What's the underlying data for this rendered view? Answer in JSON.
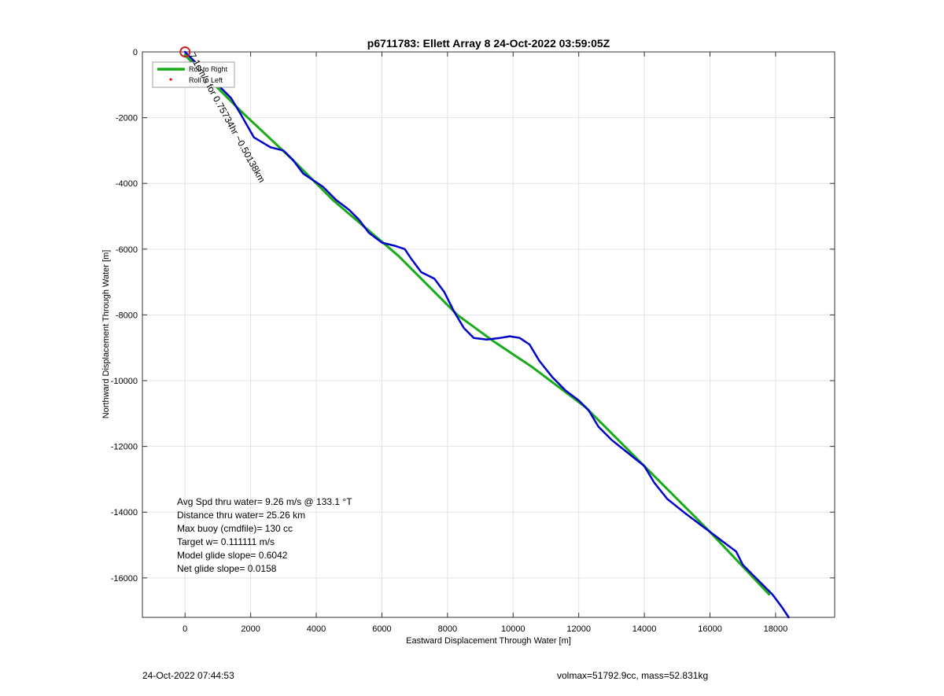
{
  "footer": {
    "timestamp": "24-Oct-2022 07:44:53",
    "mass_info": "volmax=51792.9cc, mass=52.831kg"
  },
  "chart_data": {
    "type": "line",
    "title": "p6711783: Ellett Array 8 24-Oct-2022 03:59:05Z",
    "xlabel": "Eastward Displacement Through Water [m]",
    "ylabel": "Northward Displacement Through Water [m]",
    "xlim": [
      -1300,
      19800
    ],
    "ylim": [
      -17200,
      0
    ],
    "xticks": [
      0,
      2000,
      4000,
      6000,
      8000,
      10000,
      12000,
      14000,
      16000,
      18000
    ],
    "yticks": [
      0,
      -2000,
      -4000,
      -6000,
      -8000,
      -10000,
      -12000,
      -14000,
      -16000
    ],
    "grid": true,
    "legend": {
      "placement": "top-left",
      "entries": [
        "Roll to Right",
        "Roll to Left"
      ]
    },
    "series": [
      {
        "name": "Roll to Right",
        "color": "#1aab1a",
        "x": [
          0,
          1700,
          3300,
          4500,
          6500,
          8300,
          9400,
          10600,
          12200,
          14000,
          16000,
          17800
        ],
        "y": [
          -100,
          -1800,
          -3300,
          -4500,
          -6200,
          -8000,
          -8800,
          -9600,
          -10800,
          -12600,
          -14600,
          -16500
        ]
      },
      {
        "name": "Roll to Left",
        "color": "#ff0000",
        "x": [],
        "y": []
      },
      {
        "name": "",
        "color": "#0000cc",
        "x": [
          0,
          300,
          700,
          1100,
          1400,
          1700,
          2100,
          2600,
          3000,
          3300,
          3600,
          3900,
          4200,
          4600,
          5000,
          5300,
          5600,
          6000,
          6400,
          6700,
          6900,
          7200,
          7600,
          7900,
          8200,
          8500,
          8800,
          9200,
          9600,
          9900,
          10200,
          10500,
          10800,
          11200,
          11600,
          12000,
          12300,
          12600,
          13000,
          13500,
          14000,
          14300,
          14700,
          15200,
          15600,
          16000,
          16400,
          16800,
          17000,
          17300,
          17600,
          17900,
          18200,
          18400
        ],
        "y": [
          0,
          -300,
          -700,
          -1100,
          -1400,
          -1900,
          -2600,
          -2900,
          -3000,
          -3300,
          -3700,
          -3900,
          -4100,
          -4500,
          -4800,
          -5100,
          -5500,
          -5800,
          -5900,
          -6000,
          -6300,
          -6700,
          -6900,
          -7300,
          -7900,
          -8400,
          -8700,
          -8750,
          -8700,
          -8650,
          -8700,
          -8900,
          -9400,
          -9900,
          -10300,
          -10600,
          -10900,
          -11400,
          -11800,
          -12200,
          -12600,
          -13100,
          -13600,
          -14000,
          -14300,
          -14600,
          -14900,
          -15200,
          -15600,
          -15900,
          -16200,
          -16500,
          -16900,
          -17200
        ]
      }
    ],
    "start_marker": {
      "x": 0,
      "y": 0,
      "color": "#cc2222"
    },
    "annotations": {
      "start_label": "7.1cm/s for 0.75734hr ~0.50138km",
      "stats": [
        "Avg Spd thru water=  9.26 m/s @ 133.1 °T",
        "Distance thru water= 25.26 km",
        "Max buoy (cmdfile)= 130 cc",
        "Target w= 0.111111 m/s",
        "Model glide slope= 0.6042",
        "Net glide slope= 0.0158"
      ]
    }
  }
}
